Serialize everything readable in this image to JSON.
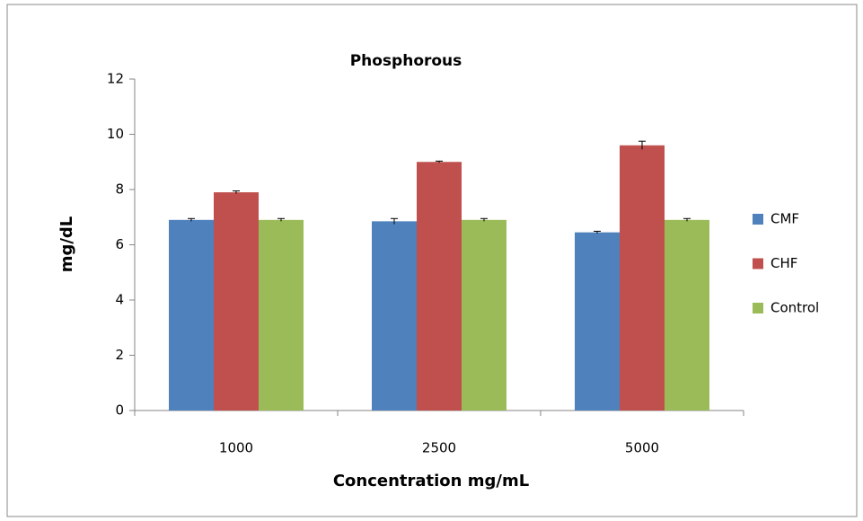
{
  "chart_data": {
    "type": "bar",
    "title": "Phosphorous",
    "x_label": "Concentration mg/mL",
    "y_label": "mg/dL",
    "categories": [
      "1000",
      "2500",
      "5000"
    ],
    "series": [
      {
        "name": "CMF",
        "color": "#4f81bd",
        "values": [
          6.9,
          6.85,
          6.45
        ],
        "errors": [
          0.05,
          0.1,
          0.04
        ]
      },
      {
        "name": "CHF",
        "color": "#c0504d",
        "values": [
          7.9,
          9.0,
          9.6
        ],
        "errors": [
          0.05,
          0.03,
          0.15
        ]
      },
      {
        "name": "Control",
        "color": "#9bbb59",
        "values": [
          6.9,
          6.9,
          6.9
        ],
        "errors": [
          0.05,
          0.05,
          0.05
        ]
      }
    ],
    "ylim": [
      0,
      12
    ],
    "yticks": [
      0,
      2,
      4,
      6,
      8,
      10,
      12
    ],
    "legend": "right",
    "grid": false
  }
}
